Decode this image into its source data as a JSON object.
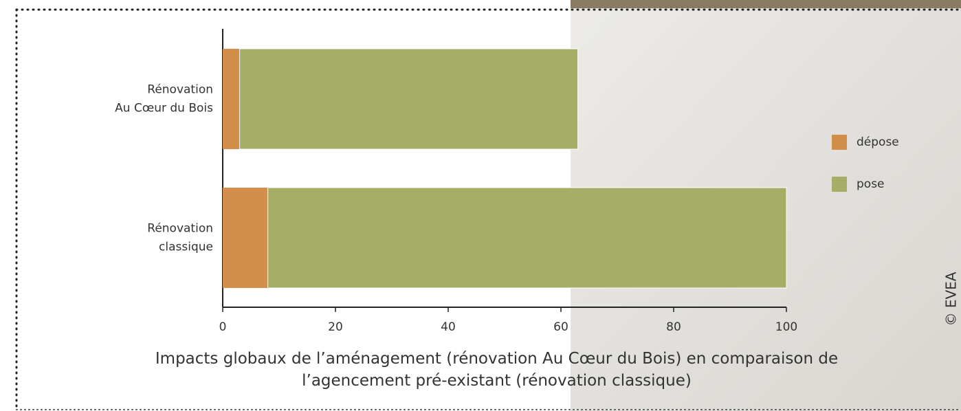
{
  "chart_data": {
    "type": "stacked-barh",
    "title": "Impacts globaux de l’aménagement (rénovation Au Cœur du Bois) en comparaison de l’agencement pré-existant (rénovation classique)",
    "categories": [
      [
        "Rénovation",
        "Au Cœur du Bois"
      ],
      [
        "Rénovation",
        "classique"
      ]
    ],
    "series": [
      {
        "name": "dépose",
        "color": "#d38e4b",
        "values": [
          3,
          8
        ]
      },
      {
        "name": "pose",
        "color": "#a5ad66",
        "values": [
          60,
          92
        ]
      }
    ],
    "xlim": [
      0,
      100
    ],
    "xticks": [
      0,
      20,
      40,
      60,
      80,
      100
    ],
    "legend": "right",
    "credit": "© EVEA"
  }
}
